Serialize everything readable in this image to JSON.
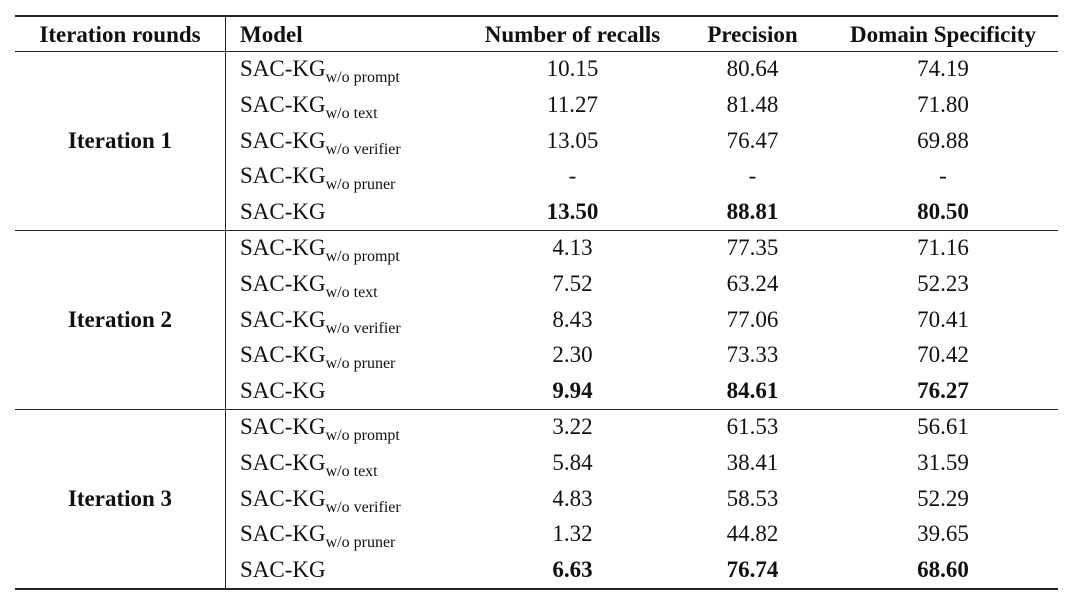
{
  "table": {
    "header": [
      "Iteration rounds",
      "Model",
      "Number of recalls",
      "Precision",
      "Domain Specificity"
    ],
    "groups": [
      {
        "label": "Iteration 1",
        "rows": [
          {
            "model": {
              "base": "SAC-KG",
              "sub": "w/o prompt"
            },
            "cells": [
              "10.15",
              "80.64",
              "74.19"
            ]
          },
          {
            "model": {
              "base": "SAC-KG",
              "sub": "w/o text"
            },
            "cells": [
              "11.27",
              "81.48",
              "71.80"
            ]
          },
          {
            "model": {
              "base": "SAC-KG",
              "sub": "w/o verifier"
            },
            "cells": [
              "13.05",
              "76.47",
              "69.88"
            ]
          },
          {
            "model": {
              "base": "SAC-KG",
              "sub": "w/o pruner"
            },
            "cells": [
              "-",
              "-",
              "-"
            ]
          },
          {
            "model": {
              "base": "SAC-KG"
            },
            "cells": [
              "13.50",
              "88.81",
              "80.50"
            ]
          }
        ]
      },
      {
        "label": "Iteration 2",
        "rows": [
          {
            "model": {
              "base": "SAC-KG",
              "sub": "w/o prompt"
            },
            "cells": [
              "4.13",
              "77.35",
              "71.16"
            ]
          },
          {
            "model": {
              "base": "SAC-KG",
              "sub": "w/o text"
            },
            "cells": [
              "7.52",
              "63.24",
              "52.23"
            ]
          },
          {
            "model": {
              "base": "SAC-KG",
              "sub": "w/o verifier"
            },
            "cells": [
              "8.43",
              "77.06",
              "70.41"
            ]
          },
          {
            "model": {
              "base": "SAC-KG",
              "sub": "w/o pruner"
            },
            "cells": [
              "2.30",
              "73.33",
              "70.42"
            ]
          },
          {
            "model": {
              "base": "SAC-KG"
            },
            "cells": [
              "9.94",
              "84.61",
              "76.27"
            ]
          }
        ]
      },
      {
        "label": "Iteration 3",
        "rows": [
          {
            "model": {
              "base": "SAC-KG",
              "sub": "w/o prompt"
            },
            "cells": [
              "3.22",
              "61.53",
              "56.61"
            ]
          },
          {
            "model": {
              "base": "SAC-KG",
              "sub": "w/o text"
            },
            "cells": [
              "5.84",
              "38.41",
              "31.59"
            ]
          },
          {
            "model": {
              "base": "SAC-KG",
              "sub": "w/o verifier"
            },
            "cells": [
              "4.83",
              "58.53",
              "52.29"
            ]
          },
          {
            "model": {
              "base": "SAC-KG",
              "sub": "w/o pruner"
            },
            "cells": [
              "1.32",
              "44.82",
              "39.65"
            ]
          },
          {
            "model": {
              "base": "SAC-KG"
            },
            "cells": [
              "6.63",
              "76.74",
              "68.60"
            ]
          }
        ]
      }
    ]
  }
}
